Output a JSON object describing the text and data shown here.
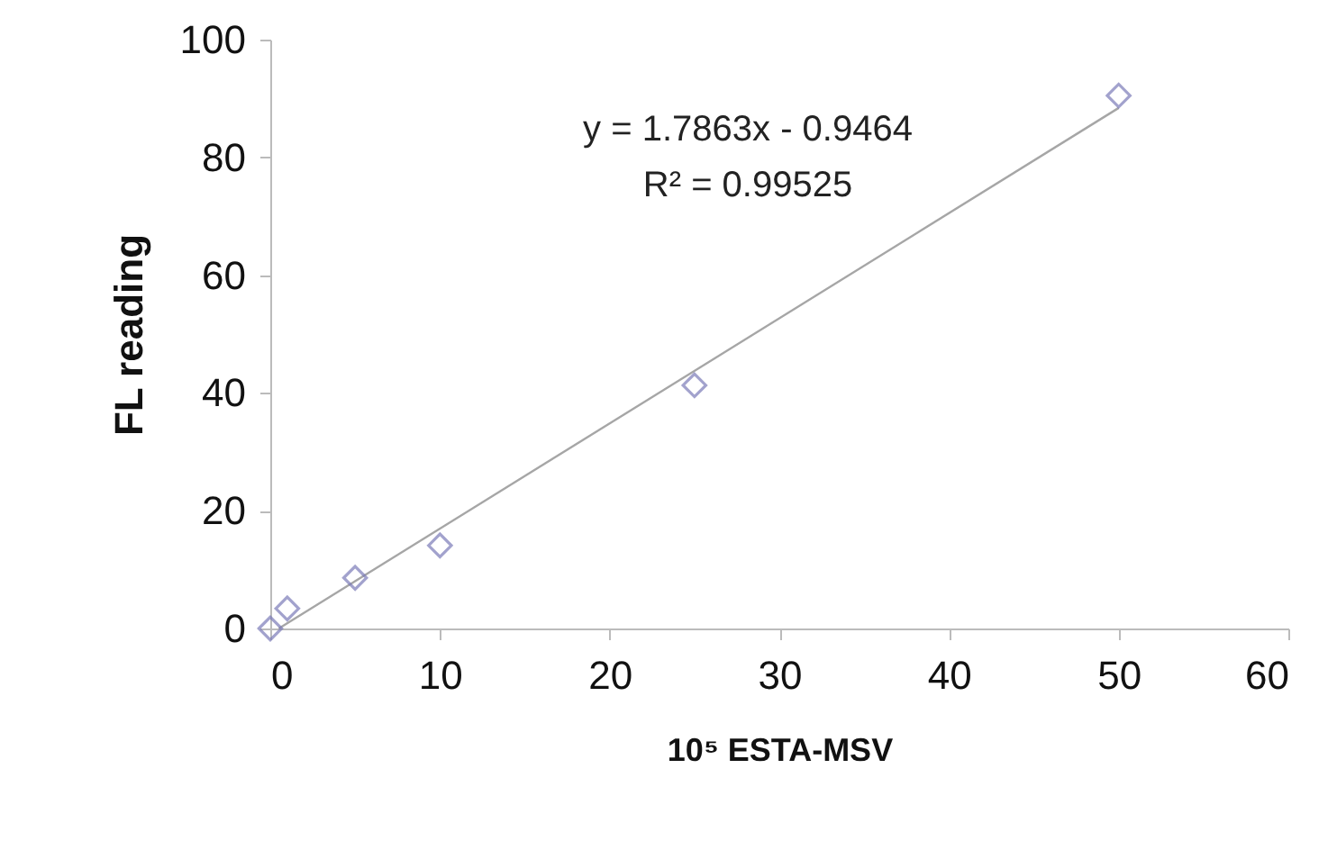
{
  "chart_data": {
    "type": "scatter",
    "xlabel": "10⁵ ESTA-MSV",
    "ylabel": "FL reading",
    "annotations": [
      "y = 1.7863x - 0.9464",
      "R² = 0.99525"
    ],
    "x": [
      0,
      1,
      5,
      10,
      25,
      50
    ],
    "series": [
      {
        "color": "#7b7bb8",
        "values": [
          0,
          3.4,
          8.6,
          14.1,
          41.3,
          90.5
        ]
      },
      {
        "type": "line",
        "marker": "none",
        "color": "#a6a6a6",
        "x": [
          0.5,
          50
        ],
        "values": [
          0,
          88.4
        ]
      }
    ],
    "xlim": [
      0,
      60
    ],
    "xticks": [
      0,
      10,
      20,
      30,
      40,
      50,
      60
    ],
    "ylim": [
      0,
      100
    ],
    "yticks": [
      0,
      20,
      40,
      60,
      80,
      100
    ],
    "marker": "diamond"
  }
}
